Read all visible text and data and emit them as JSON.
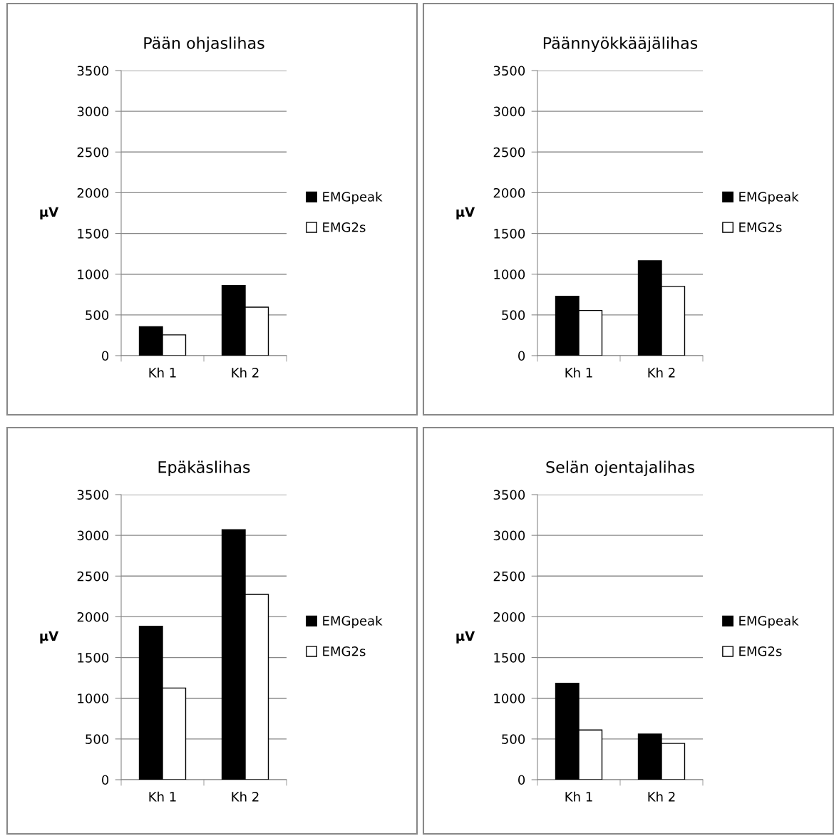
{
  "chart_data": [
    {
      "type": "bar",
      "title": "Pään ohjaslihas",
      "ylabel": "µV",
      "categories": [
        "Kh 1",
        "Kh 2"
      ],
      "series": [
        {
          "name": "EMGpeak",
          "color": "#000000",
          "values": [
            355,
            860
          ]
        },
        {
          "name": "EMG2s",
          "color": "#ffffff",
          "values": [
            255,
            595
          ]
        }
      ],
      "ylim": [
        0,
        3500
      ],
      "yticks": [
        0,
        500,
        1000,
        1500,
        2000,
        2500,
        3000,
        3500
      ],
      "grid": "y",
      "legend": "right"
    },
    {
      "type": "bar",
      "title": "Päännyökkääjälihas",
      "ylabel": "µV",
      "categories": [
        "Kh 1",
        "Kh 2"
      ],
      "series": [
        {
          "name": "EMGpeak",
          "color": "#000000",
          "values": [
            730,
            1165
          ]
        },
        {
          "name": "EMG2s",
          "color": "#ffffff",
          "values": [
            555,
            850
          ]
        }
      ],
      "ylim": [
        0,
        3500
      ],
      "yticks": [
        0,
        500,
        1000,
        1500,
        2000,
        2500,
        3000,
        3500
      ],
      "grid": "y",
      "legend": "right"
    },
    {
      "type": "bar",
      "title": "Epäkäslihas",
      "ylabel": "µV",
      "categories": [
        "Kh 1",
        "Kh 2"
      ],
      "series": [
        {
          "name": "EMGpeak",
          "color": "#000000",
          "values": [
            1885,
            3070
          ]
        },
        {
          "name": "EMG2s",
          "color": "#ffffff",
          "values": [
            1125,
            2275
          ]
        }
      ],
      "ylim": [
        0,
        3500
      ],
      "yticks": [
        0,
        500,
        1000,
        1500,
        2000,
        2500,
        3000,
        3500
      ],
      "grid": "y",
      "legend": "right"
    },
    {
      "type": "bar",
      "title": "Selän ojentajalihas",
      "ylabel": "µV",
      "categories": [
        "Kh 1",
        "Kh 2"
      ],
      "series": [
        {
          "name": "EMGpeak",
          "color": "#000000",
          "values": [
            1185,
            560
          ]
        },
        {
          "name": "EMG2s",
          "color": "#ffffff",
          "values": [
            610,
            445
          ]
        }
      ],
      "ylim": [
        0,
        3500
      ],
      "yticks": [
        0,
        500,
        1000,
        1500,
        2000,
        2500,
        3000,
        3500
      ],
      "grid": "y",
      "legend": "right"
    }
  ]
}
